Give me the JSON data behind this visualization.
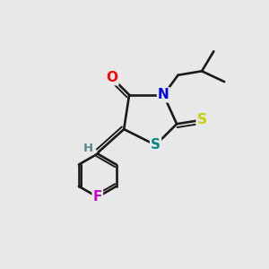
{
  "background_color": "#e8e8e8",
  "bond_color": "#1a1a1a",
  "atom_colors": {
    "O": "#ff0000",
    "N": "#0000ee",
    "S_thioxo": "#cccc00",
    "S_ring": "#008888",
    "F": "#cc00cc",
    "H": "#558888",
    "C": "#1a1a1a"
  },
  "figsize": [
    3.0,
    3.0
  ],
  "dpi": 100
}
